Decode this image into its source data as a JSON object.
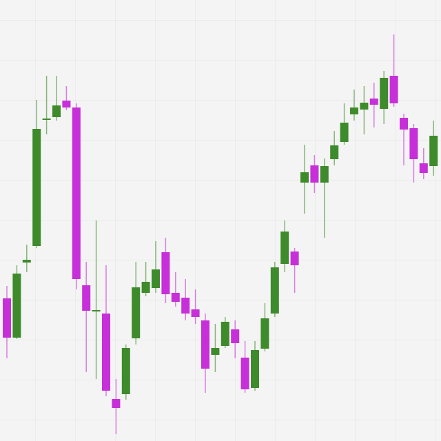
{
  "chart_data": {
    "type": "candlestick",
    "ylim": [
      0,
      640
    ],
    "open": [
      207,
      150,
      259,
      283,
      468,
      470,
      494,
      484,
      226,
      190,
      185,
      61,
      68,
      149,
      215,
      222,
      274,
      215,
      208,
      191,
      175,
      125,
      138,
      162,
      121,
      77,
      134,
      185,
      257,
      275,
      375,
      400,
      375,
      409,
      434,
      474,
      481,
      497,
      482,
      530,
      469,
      454,
      403,
      399
    ],
    "high": [
      225,
      255,
      285,
      495,
      530,
      530,
      515,
      490,
      260,
      320,
      255,
      90,
      140,
      260,
      260,
      290,
      295,
      245,
      235,
      220,
      185,
      170,
      180,
      175,
      145,
      145,
      200,
      260,
      320,
      280,
      430,
      415,
      410,
      450,
      490,
      510,
      515,
      520,
      537,
      590,
      475,
      460,
      425,
      465
    ],
    "low": [
      120,
      148,
      245,
      280,
      445,
      465,
      480,
      220,
      100,
      90,
      65,
      10,
      60,
      140,
      210,
      215,
      200,
      195,
      175,
      170,
      70,
      100,
      135,
      120,
      70,
      73,
      130,
      180,
      245,
      215,
      330,
      360,
      295,
      400,
      430,
      465,
      445,
      455,
      460,
      485,
      400,
      375,
      380,
      385
    ],
    "close": [
      150,
      243,
      263,
      453,
      468,
      487,
      484,
      235,
      189,
      190,
      73,
      48,
      135,
      223,
      231,
      249,
      213,
      202,
      185,
      180,
      105,
      135,
      173,
      142,
      75,
      132,
      178,
      252,
      304,
      255,
      390,
      375,
      399,
      429,
      462,
      484,
      491,
      488,
      527,
      490,
      452,
      409,
      389,
      443
    ],
    "up_color": "#3d8b2a",
    "down_color": "#c72fd9",
    "grid": true
  }
}
